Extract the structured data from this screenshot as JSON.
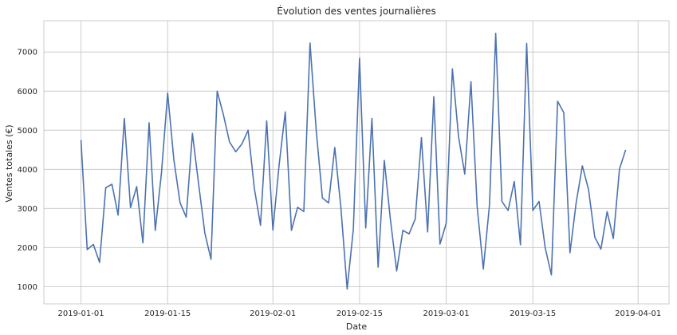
{
  "chart_data": {
    "type": "line",
    "title": "Évolution des ventes journalières",
    "xlabel": "Date",
    "ylabel": "Ventes totales (€)",
    "grid": true,
    "colors": {
      "line": "#4c72b0",
      "grid": "#cccccc",
      "frame": "#cccccc"
    },
    "x_range": [
      "2018-12-26",
      "2019-04-06"
    ],
    "ylim": [
      560,
      7800
    ],
    "x_ticks": [
      "2019-01-01",
      "2019-01-15",
      "2019-02-01",
      "2019-02-15",
      "2019-03-01",
      "2019-03-15",
      "2019-04-01"
    ],
    "y_ticks": [
      1000,
      2000,
      3000,
      4000,
      5000,
      6000,
      7000
    ],
    "series": [
      {
        "start_date": "2019-01-01",
        "values": [
          4750,
          1950,
          2080,
          1620,
          3530,
          3620,
          2830,
          5300,
          3020,
          3560,
          2120,
          5190,
          2440,
          3910,
          5950,
          4250,
          3150,
          2780,
          4920,
          3630,
          2380,
          1700,
          6000,
          5400,
          4700,
          4450,
          4650,
          5000,
          3520,
          2570,
          5240,
          2450,
          4100,
          5470,
          2440,
          3030,
          2920,
          7230,
          5000,
          3270,
          3140,
          4560,
          3000,
          940,
          2470,
          6840,
          2500,
          5300,
          1500,
          4230,
          2700,
          1400,
          2440,
          2350,
          2730,
          4810,
          2400,
          5860,
          2090,
          2620,
          6570,
          4830,
          3880,
          6240,
          3050,
          1450,
          3100,
          7480,
          3180,
          2950,
          3690,
          2070,
          7220,
          2950,
          3180,
          1990,
          1300,
          5740,
          5450,
          1870,
          3150,
          4090,
          3480,
          2270,
          1960,
          2920,
          2230,
          4010,
          4500
        ]
      }
    ]
  }
}
